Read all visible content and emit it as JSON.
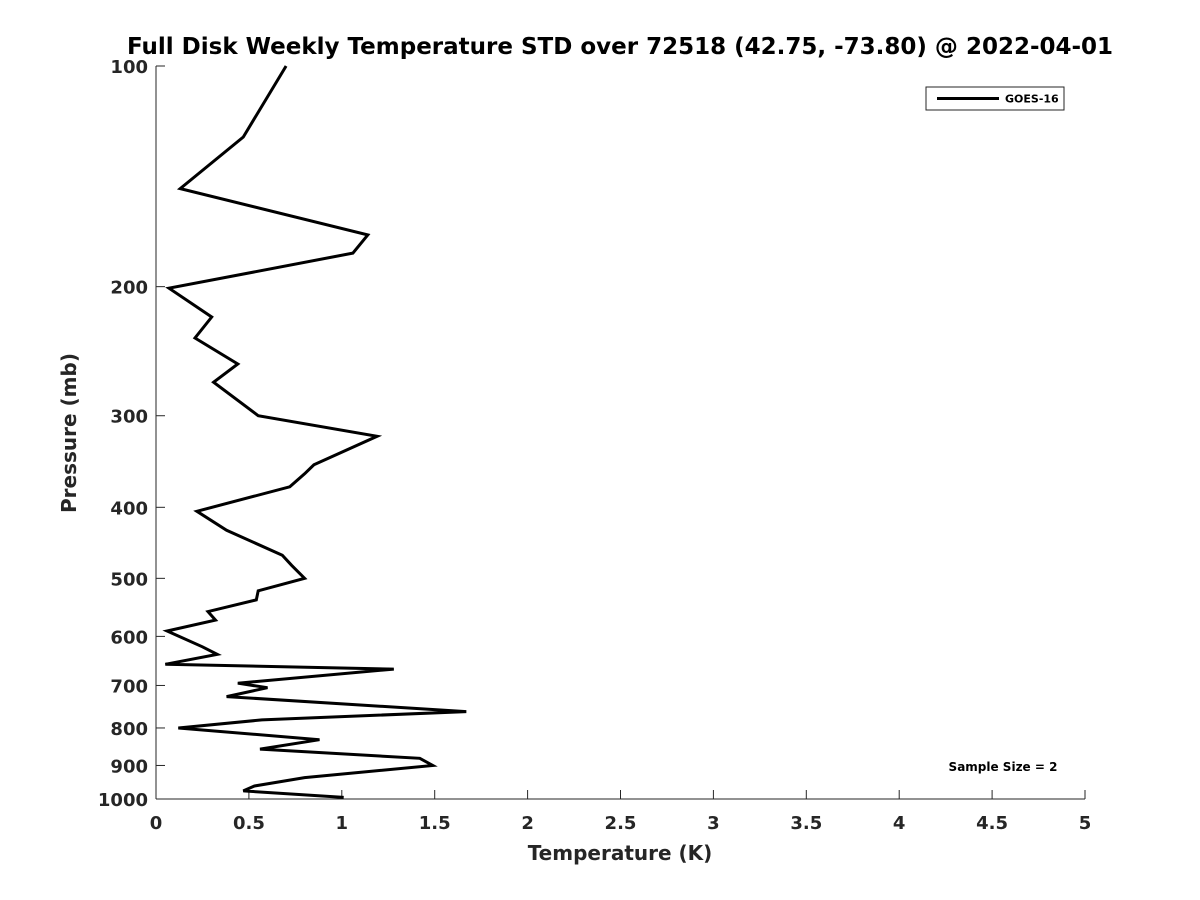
{
  "chart_data": {
    "type": "line",
    "title": "Full Disk Weekly Temperature STD over 72518 (42.75, -73.80) @ 2022-04-01",
    "xlabel": "Temperature (K)",
    "ylabel": "Pressure (mb)",
    "xlim": [
      0,
      5
    ],
    "ylim": [
      1000,
      100
    ],
    "yscale": "log",
    "xticks": [
      0,
      0.5,
      1,
      1.5,
      2,
      2.5,
      3,
      3.5,
      4,
      4.5,
      5
    ],
    "xtick_labels": [
      "0",
      "0.5",
      "1",
      "1.5",
      "2",
      "2.5",
      "3",
      "3.5",
      "4",
      "4.5",
      "5"
    ],
    "yticks": [
      100,
      200,
      300,
      400,
      500,
      600,
      700,
      800,
      900,
      1000
    ],
    "ytick_labels": [
      "100",
      "200",
      "300",
      "400",
      "500",
      "600",
      "700",
      "800",
      "900",
      "1000"
    ],
    "grid": false,
    "legend": {
      "placement": "top-right",
      "entries": [
        "GOES-16"
      ]
    },
    "annotation": "Sample Size = 2",
    "series": [
      {
        "name": "GOES-16",
        "color": "#000000",
        "x": [
          0.7,
          0.47,
          0.13,
          1.14,
          1.06,
          0.07,
          0.3,
          0.21,
          0.44,
          0.31,
          0.55,
          1.19,
          0.85,
          0.8,
          0.72,
          0.22,
          0.38,
          0.68,
          0.73,
          0.8,
          0.55,
          0.54,
          0.28,
          0.32,
          0.06,
          0.25,
          0.33,
          0.05,
          1.28,
          0.44,
          0.6,
          0.38,
          1.67,
          0.57,
          0.12,
          0.88,
          0.56,
          1.42,
          1.49,
          0.8,
          0.53,
          0.47,
          1.01
        ],
        "y": [
          100,
          125,
          147,
          170,
          180,
          201,
          220,
          235,
          255,
          270,
          300,
          320,
          350,
          360,
          375,
          405,
          430,
          465,
          480,
          500,
          520,
          535,
          555,
          570,
          590,
          620,
          635,
          655,
          665,
          695,
          705,
          725,
          760,
          780,
          800,
          830,
          855,
          880,
          900,
          935,
          960,
          975,
          995
        ]
      }
    ]
  }
}
